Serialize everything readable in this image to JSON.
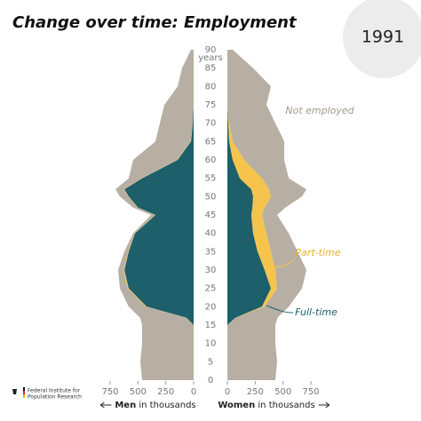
{
  "title": "Change over time: Employment",
  "year": "1991",
  "logo": [
    "Federal Institute for",
    "Population Research"
  ],
  "chart_data": {
    "type": "pyramid",
    "ages": [
      0,
      5,
      10,
      15,
      17,
      20,
      25,
      30,
      35,
      40,
      45,
      47,
      50,
      52,
      55,
      60,
      65,
      70,
      75,
      80,
      85,
      90
    ],
    "ylim": [
      0,
      90
    ],
    "yticks": [
      0,
      5,
      10,
      15,
      20,
      25,
      30,
      35,
      40,
      45,
      50,
      55,
      60,
      65,
      70,
      75,
      80,
      85,
      90
    ],
    "age_label": "years",
    "series": [
      {
        "name": "Full-time",
        "color": "#1d5f6a"
      },
      {
        "name": "Part-time",
        "color": "#f6c34c"
      },
      {
        "name": "Not employed",
        "color": "#b7afa3"
      }
    ],
    "panels": [
      {
        "label": "Men",
        "unit_label": "in thousands",
        "side": "left",
        "xlim": [
          0,
          750
        ],
        "xticks": [
          0,
          250,
          500,
          750
        ],
        "values": [
          [
            0,
            0,
            0,
            0,
            64,
            423,
            583,
            622,
            583,
            527,
            343,
            500,
            583,
            622,
            463,
            144,
            24,
            8,
            0,
            0,
            0,
            0
          ],
          [
            0,
            0,
            0,
            0,
            0,
            8,
            10,
            8,
            5,
            5,
            5,
            5,
            5,
            5,
            5,
            5,
            3,
            0,
            0,
            0,
            0,
            0
          ],
          [
            463,
            479,
            463,
            463,
            416,
            152,
            69,
            48,
            34,
            11,
            35,
            38,
            74,
            75,
            115,
            394,
            316,
            295,
            263,
            144,
            104,
            24
          ]
        ]
      },
      {
        "label": "Women",
        "unit_label": "in thousands",
        "side": "right",
        "xlim": [
          0,
          750
        ],
        "xticks": [
          0,
          250,
          500,
          750
        ],
        "values": [
          [
            0,
            0,
            0,
            0,
            72,
            311,
            391,
            335,
            271,
            231,
            215,
            225,
            231,
            215,
            112,
            48,
            16,
            8,
            0,
            0,
            0,
            0
          ],
          [
            0,
            0,
            0,
            0,
            0,
            24,
            56,
            96,
            120,
            120,
            96,
            110,
            160,
            160,
            200,
            104,
            32,
            8,
            0,
            0,
            0,
            0
          ],
          [
            431,
            447,
            431,
            431,
            378,
            216,
            223,
            279,
            239,
            200,
            136,
            185,
            279,
            335,
            239,
            359,
            463,
            415,
            351,
            391,
            231,
            48
          ]
        ]
      }
    ]
  }
}
